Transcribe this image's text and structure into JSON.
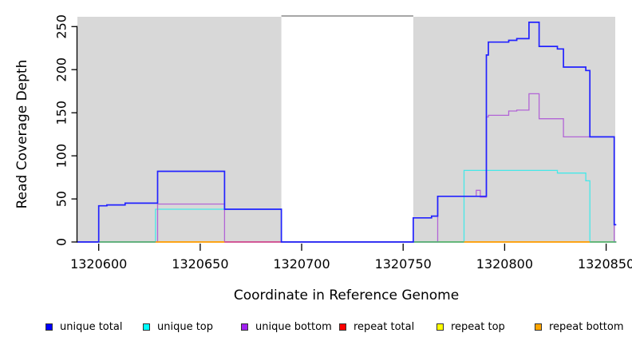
{
  "chart_data": {
    "type": "line",
    "title": "",
    "xlabel": "Coordinate in Reference Genome",
    "ylabel": "Read Coverage Depth",
    "xlim": [
      1320589.5,
      1320854.5
    ],
    "ylim": [
      0,
      260
    ],
    "x_ticks": [
      1320600,
      1320650,
      1320700,
      1320750,
      1320800,
      1320850
    ],
    "y_ticks": [
      0,
      50,
      100,
      150,
      200,
      250
    ],
    "grid": false,
    "legend_position": "bottom",
    "shaded_regions": [
      {
        "x0": 1320589.5,
        "x1": 1320690,
        "color": "#d8d8d8"
      },
      {
        "x0": 1320755,
        "x1": 1320854.5,
        "color": "#d8d8d8"
      }
    ],
    "gap_region": {
      "x0": 1320690,
      "x1": 1320755,
      "border_color": "#999999"
    },
    "series": [
      {
        "name": "repeat total",
        "color": "#ff0000",
        "line_color": "#ff0000",
        "steps": [
          [
            1320589.5,
            0
          ],
          [
            1320855,
            0
          ]
        ]
      },
      {
        "name": "repeat top",
        "color": "#ffff00",
        "line_color": "#ffff00",
        "steps": [
          [
            1320589.5,
            0
          ],
          [
            1320855,
            0
          ]
        ]
      },
      {
        "name": "repeat bottom",
        "color": "#ffa500",
        "line_color": "#ff9d00",
        "steps": [
          [
            1320589.5,
            0
          ],
          [
            1320855,
            0
          ]
        ]
      },
      {
        "name": "unique top",
        "color": "#00ffff",
        "line_color": "#45e8e8",
        "steps": [
          [
            1320589.5,
            0
          ],
          [
            1320628,
            38
          ],
          [
            1320690,
            0
          ],
          [
            1320780,
            83
          ],
          [
            1320826,
            80
          ],
          [
            1320840,
            71
          ],
          [
            1320842,
            0
          ],
          [
            1320855,
            0
          ]
        ]
      },
      {
        "name": "unique bottom",
        "color": "#a020f0",
        "line_color": "#b264d6",
        "steps": [
          [
            1320589.5,
            0
          ],
          [
            1320629,
            44
          ],
          [
            1320662,
            0
          ],
          [
            1320767,
            53
          ],
          [
            1320786,
            60
          ],
          [
            1320788,
            52
          ],
          [
            1320791,
            145
          ],
          [
            1320792,
            147
          ],
          [
            1320802,
            152
          ],
          [
            1320806,
            153
          ],
          [
            1320812,
            172
          ],
          [
            1320817,
            143
          ],
          [
            1320829,
            122
          ],
          [
            1320854,
            0
          ],
          [
            1320855,
            0
          ]
        ]
      },
      {
        "name": "unique total",
        "color": "#0000ff",
        "line_color": "#2222ff",
        "steps": [
          [
            1320589.5,
            0
          ],
          [
            1320600,
            42
          ],
          [
            1320604,
            43
          ],
          [
            1320613,
            45
          ],
          [
            1320629,
            82
          ],
          [
            1320662,
            38
          ],
          [
            1320690,
            0
          ],
          [
            1320755,
            28
          ],
          [
            1320764,
            30
          ],
          [
            1320767,
            53
          ],
          [
            1320791,
            217
          ],
          [
            1320792,
            232
          ],
          [
            1320802,
            234
          ],
          [
            1320806,
            236
          ],
          [
            1320812,
            255
          ],
          [
            1320817,
            227
          ],
          [
            1320826,
            224
          ],
          [
            1320829,
            203
          ],
          [
            1320840,
            199
          ],
          [
            1320842,
            122
          ],
          [
            1320854,
            20
          ],
          [
            1320855,
            20
          ]
        ]
      }
    ],
    "zero_line_segments": [
      {
        "x0": 1320600,
        "x1": 1320628,
        "color": "#44b377"
      },
      {
        "x0": 1320628,
        "x1": 1320662,
        "color": "#ff9d00"
      },
      {
        "x0": 1320662,
        "x1": 1320690,
        "color": "#cb3f9f"
      },
      {
        "x0": 1320755,
        "x1": 1320780,
        "color": "#44b377"
      },
      {
        "x0": 1320780,
        "x1": 1320842,
        "color": "#ff9d00"
      },
      {
        "x0": 1320842,
        "x1": 1320855,
        "color": "#44b377"
      }
    ]
  },
  "legend": {
    "items": [
      {
        "label": "unique total",
        "color": "#0000ff"
      },
      {
        "label": "unique top",
        "color": "#00ffff"
      },
      {
        "label": "unique bottom",
        "color": "#a020f0"
      },
      {
        "label": "repeat total",
        "color": "#ff0000"
      },
      {
        "label": "repeat top",
        "color": "#ffff00"
      },
      {
        "label": "repeat bottom",
        "color": "#ffa500"
      }
    ]
  }
}
